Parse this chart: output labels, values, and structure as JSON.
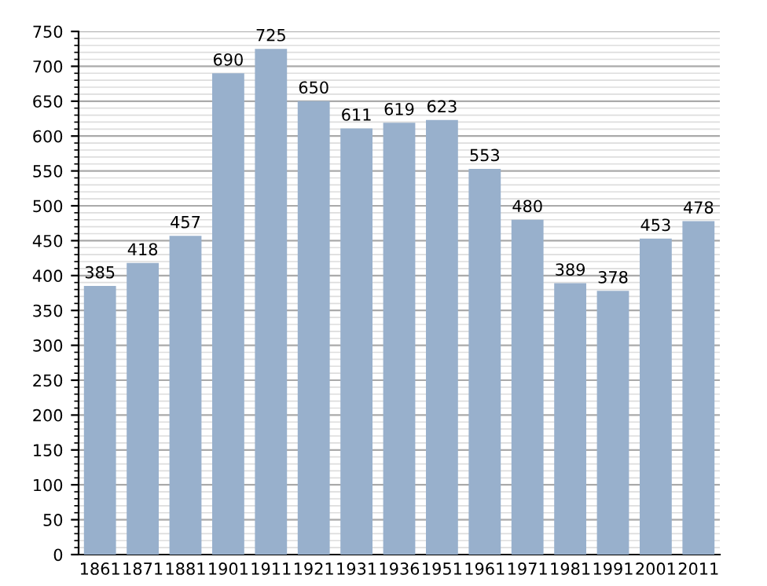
{
  "chart_data": {
    "type": "bar",
    "categories": [
      "1861",
      "1871",
      "1881",
      "1901",
      "1911",
      "1921",
      "1931",
      "1936",
      "1951",
      "1961",
      "1971",
      "1981",
      "1991",
      "2001",
      "2011"
    ],
    "values": [
      385,
      418,
      457,
      690,
      725,
      650,
      611,
      619,
      623,
      553,
      480,
      389,
      378,
      453,
      478
    ],
    "color": "#98b0cc",
    "ylim": [
      0,
      750
    ],
    "yticks": [
      0,
      50,
      100,
      150,
      200,
      250,
      300,
      350,
      400,
      450,
      500,
      550,
      600,
      650,
      700,
      750
    ],
    "grid": "y",
    "data_labels": true
  }
}
